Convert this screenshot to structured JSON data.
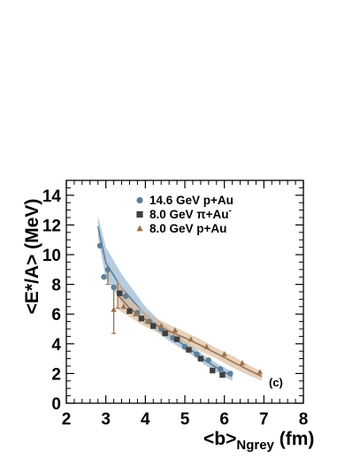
{
  "chart_data": {
    "type": "scatter",
    "panel_label": "(c)",
    "xlabel": "<b>",
    "xlabel_subscript": "Ngrey",
    "xlabel_unit": " (fm)",
    "ylabel": "<E*/A> (MeV)",
    "xlim": [
      2,
      8
    ],
    "ylim": [
      0,
      15
    ],
    "xticks": [
      2,
      3,
      4,
      5,
      6,
      7,
      8
    ],
    "yticks": [
      0,
      2,
      4,
      6,
      8,
      10,
      12,
      14
    ],
    "legend_position": "top-right",
    "series": [
      {
        "name": "14.6 GeV p+Au",
        "marker": "circle",
        "color": "#5f7f96",
        "band_color": "#8fb1cc",
        "x": [
          2.85,
          2.95,
          3.05,
          3.2,
          3.5,
          3.8,
          4.1,
          4.4,
          4.7,
          5.0,
          5.3,
          5.6,
          5.9,
          6.15
        ],
        "y": [
          10.6,
          8.5,
          9.0,
          7.8,
          7.2,
          6.1,
          5.5,
          5.0,
          4.4,
          3.8,
          3.3,
          2.9,
          2.3,
          2.0
        ],
        "band_upper": [
          12.6,
          10.5,
          9.6,
          8.7,
          7.6,
          6.5,
          5.7,
          5.0,
          4.4,
          3.8,
          3.2,
          2.7,
          2.1
        ],
        "band_lower": [
          11.2,
          8.4,
          7.6,
          6.8,
          6.1,
          5.4,
          4.8,
          4.2,
          3.7,
          3.2,
          2.6,
          2.1,
          1.5
        ],
        "band_x": [
          2.8,
          3.0,
          3.2,
          3.4,
          3.7,
          4.0,
          4.3,
          4.6,
          4.9,
          5.2,
          5.5,
          5.8,
          6.2
        ]
      },
      {
        "name": "8.0 GeV π⁻+Au",
        "legend_label": "8.0 GeV π+Au",
        "legend_superscript": "-",
        "marker": "square",
        "color": "#404040",
        "x": [
          3.35,
          3.6,
          3.9,
          4.2,
          4.5,
          4.8,
          5.1,
          5.4,
          5.7,
          5.95
        ],
        "y": [
          7.4,
          6.2,
          5.7,
          5.2,
          4.7,
          4.3,
          3.6,
          3.0,
          2.2,
          1.9
        ]
      },
      {
        "name": "8.0 GeV p̄+Au",
        "legend_label": "8.0 GeV p+Au",
        "marker": "triangle",
        "color": "#9a7250",
        "band_color": "#d8b898",
        "x": [
          3.2,
          3.45,
          3.75,
          4.05,
          4.4,
          4.75,
          5.15,
          5.55,
          6.0,
          6.45,
          6.9
        ],
        "y": [
          6.3,
          6.5,
          6.0,
          5.5,
          5.2,
          4.9,
          4.3,
          3.8,
          3.3,
          2.7,
          2.1
        ],
        "error_bars": [
          {
            "x": 3.2,
            "y": 6.3,
            "yerr_low": 1.6,
            "yerr_high": 1.4
          },
          {
            "x": 3.3,
            "y": 7.2,
            "yerr_low": 0.8,
            "yerr_high": 0.9
          },
          {
            "x": 3.05,
            "y": 8.6,
            "yerr_low": 0.6,
            "yerr_high": 0.4
          }
        ],
        "band_x": [
          3.3,
          3.6,
          3.9,
          4.2,
          4.6,
          5.0,
          5.4,
          5.8,
          6.2,
          6.6,
          6.95
        ],
        "band_upper": [
          8.3,
          7.0,
          6.3,
          5.8,
          5.3,
          4.8,
          4.3,
          3.7,
          3.2,
          2.6,
          2.1
        ],
        "band_lower": [
          6.3,
          5.8,
          5.3,
          4.9,
          4.4,
          4.0,
          3.5,
          3.0,
          2.4,
          1.9,
          1.5
        ]
      }
    ]
  }
}
